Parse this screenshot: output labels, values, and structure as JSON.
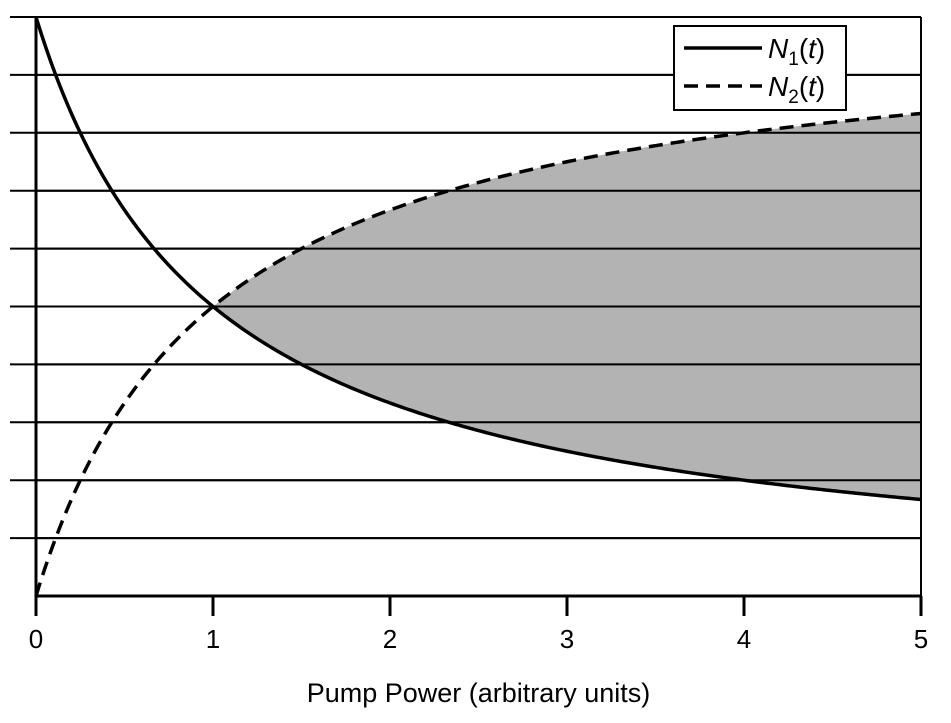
{
  "chart_data": {
    "type": "line",
    "xlabel": "Pump Power (arbitrary units)",
    "ylabel": "",
    "xlim": [
      0,
      5
    ],
    "ylim": [
      0,
      1
    ],
    "x_ticks": [
      "0",
      "1",
      "2",
      "3",
      "4",
      "5"
    ],
    "grid": "horizontal",
    "legend_position": "top-right",
    "series": [
      {
        "name": "N1(t)",
        "legend": {
          "symbol": "N",
          "sub": "1",
          "arg": "t"
        },
        "style": "solid",
        "x": [
          0,
          0.25,
          0.5,
          0.75,
          1,
          1.25,
          1.5,
          2,
          2.5,
          3,
          3.5,
          4,
          4.5,
          5
        ],
        "y": [
          1.0,
          0.8,
          0.667,
          0.571,
          0.5,
          0.444,
          0.4,
          0.333,
          0.286,
          0.25,
          0.222,
          0.2,
          0.182,
          0.167
        ]
      },
      {
        "name": "N2(t)",
        "legend": {
          "symbol": "N",
          "sub": "2",
          "arg": "t"
        },
        "style": "dashed",
        "x": [
          0,
          0.25,
          0.5,
          0.75,
          1,
          1.25,
          1.5,
          2,
          2.5,
          3,
          3.5,
          4,
          4.5,
          5
        ],
        "y": [
          0.0,
          0.2,
          0.333,
          0.429,
          0.5,
          0.556,
          0.6,
          0.667,
          0.714,
          0.75,
          0.778,
          0.8,
          0.818,
          0.833
        ]
      }
    ],
    "shaded_region": {
      "description": "N2(t) > N1(t)",
      "x_from": 1,
      "x_to": 5,
      "color": "#b3b3b3"
    }
  }
}
